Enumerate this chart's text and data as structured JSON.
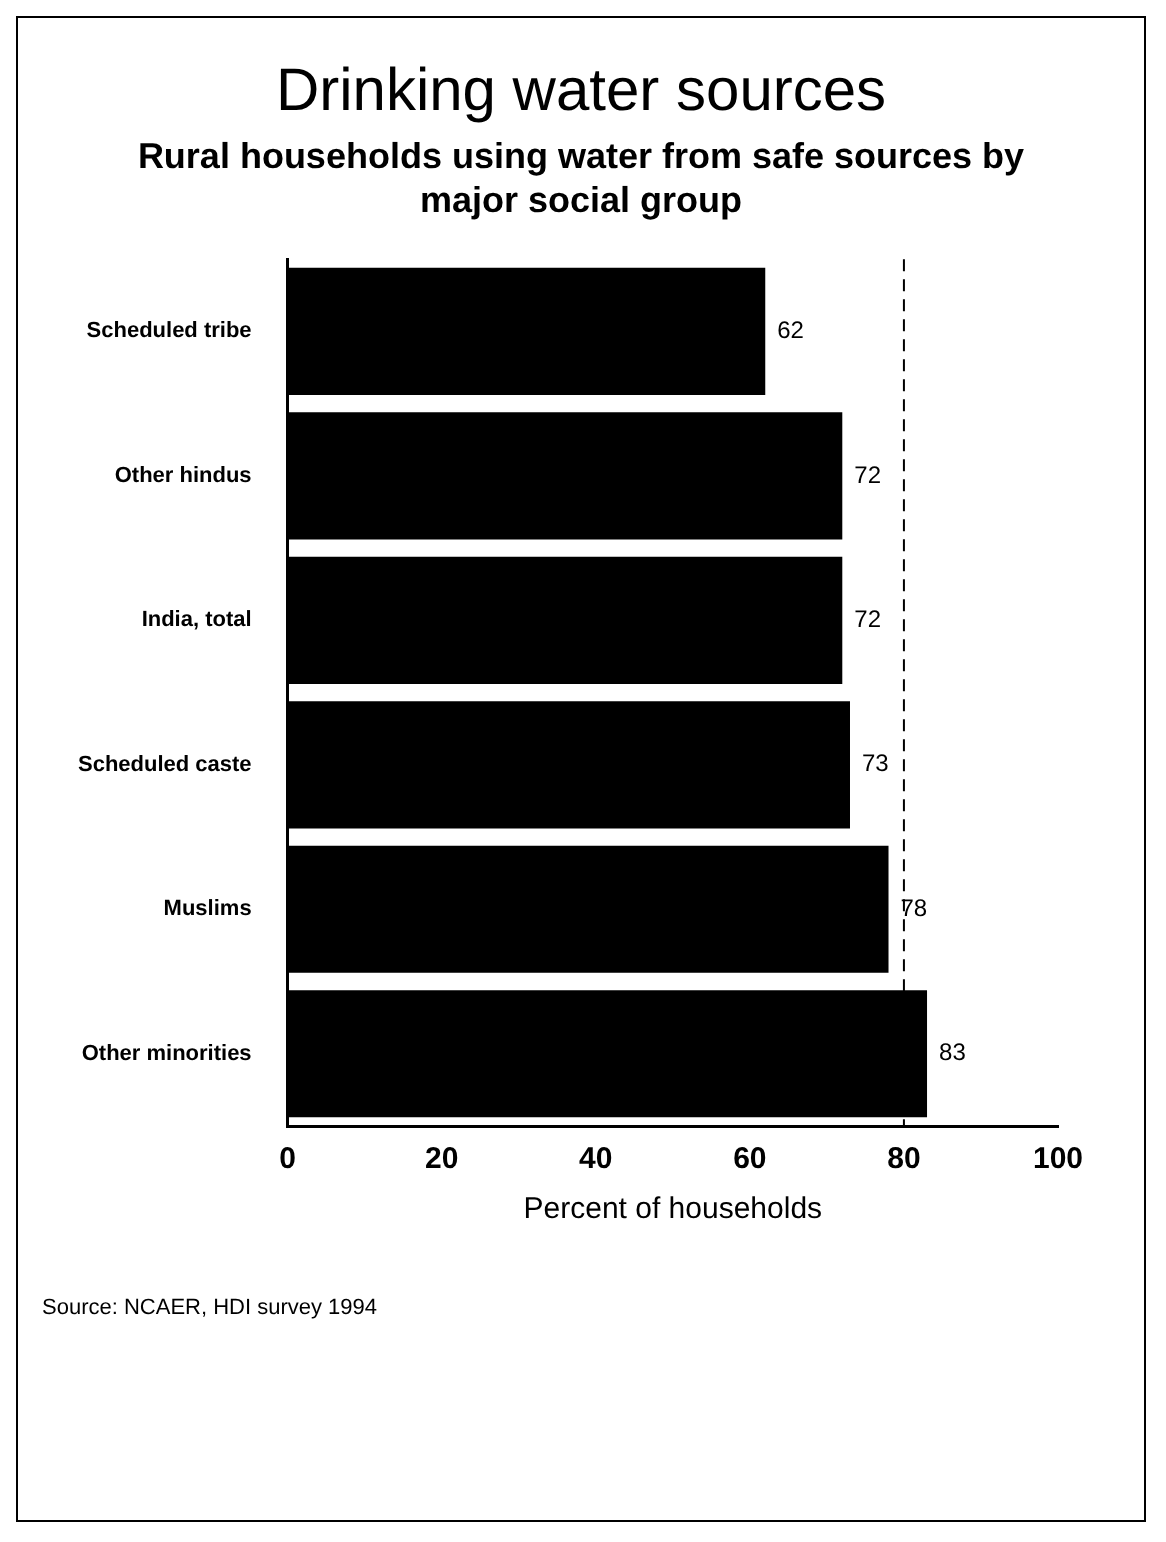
{
  "chart_data": {
    "type": "bar",
    "orientation": "horizontal",
    "title": "Drinking water sources",
    "subtitle": "Rural households using water from safe sources by major social group",
    "xlabel": "Percent of households",
    "categories": [
      "Scheduled tribe",
      "Other hindus",
      "India, total",
      "Scheduled caste",
      "Muslims",
      "Other minorities"
    ],
    "values": [
      62,
      72,
      72,
      73,
      78,
      83
    ],
    "color": "#000000",
    "data_labels": true,
    "xlim": [
      0,
      100
    ],
    "xticks": [
      0,
      20,
      40,
      60,
      80,
      100
    ],
    "grid": false,
    "legend": false,
    "ref_lines": [
      {
        "axis": "x",
        "value": 80,
        "line_style": "dashed",
        "color": "#000000"
      }
    ],
    "annotations": [
      "Source: NCAER, HDI survey 1994"
    ]
  }
}
